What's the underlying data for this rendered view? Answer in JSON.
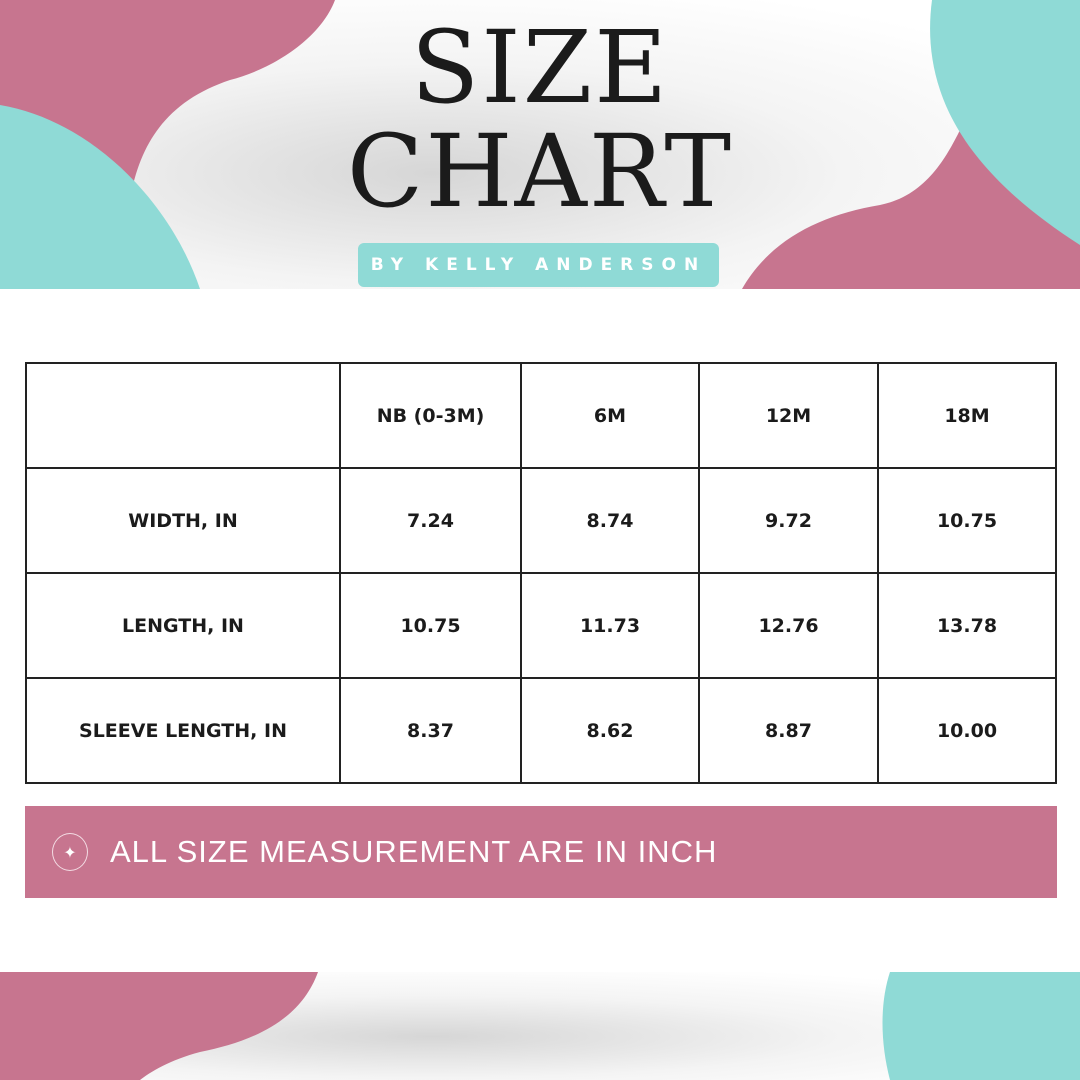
{
  "header": {
    "title_line1": "SIZE",
    "title_line2": "CHART",
    "byline": "BY KELLY ANDERSON"
  },
  "colors": {
    "pink": "#c7758f",
    "teal": "#8fdad6",
    "text": "#1b1b1b"
  },
  "table": {
    "columns": [
      "",
      "NB (0-3M)",
      "6M",
      "12M",
      "18M"
    ],
    "rows": [
      {
        "label": "WIDTH, IN",
        "values": [
          "7.24",
          "8.74",
          "9.72",
          "10.75"
        ]
      },
      {
        "label": "LENGTH, IN",
        "values": [
          "10.75",
          "11.73",
          "12.76",
          "13.78"
        ]
      },
      {
        "label": "SLEEVE LENGTH, IN",
        "values": [
          "8.37",
          "8.62",
          "8.87",
          "10.00"
        ]
      }
    ]
  },
  "note": {
    "icon": "sparkle-icon",
    "text": "ALL SIZE MEASUREMENT ARE IN INCH"
  }
}
